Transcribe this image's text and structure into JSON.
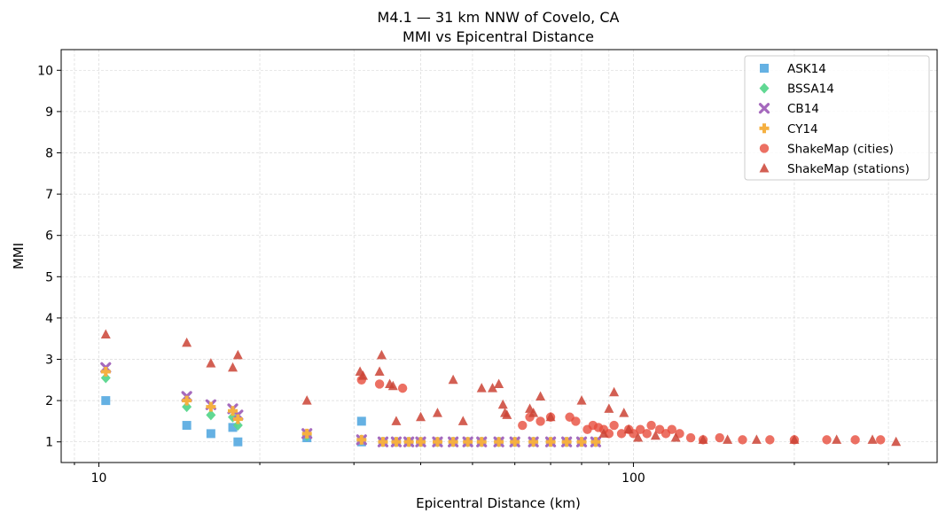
{
  "chart_data": {
    "type": "scatter",
    "title": "M4.1 — 31 km NNW of Covelo, CA",
    "subtitle": "MMI vs Epicentral Distance",
    "xlabel": "Epicentral Distance (km)",
    "ylabel": "MMI",
    "xscale": "log",
    "xlim": [
      8.5,
      370
    ],
    "ylim": [
      0.5,
      10.5
    ],
    "xticks": [
      10,
      100
    ],
    "xtick_labels": [
      "10",
      "100"
    ],
    "yticks": [
      1,
      2,
      3,
      4,
      5,
      6,
      7,
      8,
      9,
      10
    ],
    "ytick_labels": [
      "1",
      "2",
      "3",
      "4",
      "5",
      "6",
      "7",
      "8",
      "9",
      "10"
    ],
    "grid": true,
    "legend_position": "top-right",
    "series": [
      {
        "name": "ASK14",
        "marker": "square",
        "color": "#5DADE2",
        "points": [
          [
            10.3,
            2.0
          ],
          [
            14.6,
            1.4
          ],
          [
            16.2,
            1.2
          ],
          [
            17.8,
            1.35
          ],
          [
            18.2,
            1.0
          ],
          [
            24.5,
            1.1
          ],
          [
            31,
            1.5
          ],
          [
            31,
            1.0
          ],
          [
            34,
            1.0
          ],
          [
            36,
            1.0
          ],
          [
            38,
            1.0
          ],
          [
            40,
            1.0
          ],
          [
            43,
            1.0
          ],
          [
            46,
            1.0
          ],
          [
            49,
            1.0
          ],
          [
            52,
            1.0
          ],
          [
            56,
            1.0
          ],
          [
            60,
            1.0
          ],
          [
            65,
            1.0
          ],
          [
            70,
            1.0
          ],
          [
            75,
            1.0
          ],
          [
            80,
            1.0
          ],
          [
            85,
            1.0
          ]
        ]
      },
      {
        "name": "BSSA14",
        "marker": "diamond",
        "color": "#58D68D",
        "points": [
          [
            10.3,
            2.55
          ],
          [
            14.6,
            1.85
          ],
          [
            16.2,
            1.65
          ],
          [
            17.8,
            1.6
          ],
          [
            18.2,
            1.4
          ],
          [
            24.5,
            1.15
          ],
          [
            31,
            1.05
          ],
          [
            34,
            1.0
          ],
          [
            36,
            1.0
          ],
          [
            38,
            1.0
          ],
          [
            40,
            1.0
          ],
          [
            43,
            1.0
          ],
          [
            46,
            1.0
          ],
          [
            49,
            1.0
          ],
          [
            52,
            1.0
          ],
          [
            56,
            1.0
          ],
          [
            60,
            1.0
          ],
          [
            65,
            1.0
          ],
          [
            70,
            1.0
          ],
          [
            75,
            1.0
          ],
          [
            80,
            1.0
          ],
          [
            85,
            1.0
          ]
        ]
      },
      {
        "name": "CB14",
        "marker": "x",
        "color": "#A569BD",
        "points": [
          [
            10.3,
            2.8
          ],
          [
            14.6,
            2.1
          ],
          [
            16.2,
            1.9
          ],
          [
            17.8,
            1.8
          ],
          [
            18.2,
            1.65
          ],
          [
            24.5,
            1.2
          ],
          [
            31,
            1.05
          ],
          [
            34,
            1.0
          ],
          [
            36,
            1.0
          ],
          [
            38,
            1.0
          ],
          [
            40,
            1.0
          ],
          [
            43,
            1.0
          ],
          [
            46,
            1.0
          ],
          [
            49,
            1.0
          ],
          [
            52,
            1.0
          ],
          [
            56,
            1.0
          ],
          [
            60,
            1.0
          ],
          [
            65,
            1.0
          ],
          [
            70,
            1.0
          ],
          [
            75,
            1.0
          ],
          [
            80,
            1.0
          ],
          [
            85,
            1.0
          ]
        ]
      },
      {
        "name": "CY14",
        "marker": "plus",
        "color": "#F5B041",
        "points": [
          [
            10.3,
            2.7
          ],
          [
            14.6,
            2.0
          ],
          [
            16.2,
            1.85
          ],
          [
            17.8,
            1.75
          ],
          [
            18.2,
            1.55
          ],
          [
            24.5,
            1.2
          ],
          [
            31,
            1.05
          ],
          [
            34,
            1.0
          ],
          [
            36,
            1.0
          ],
          [
            38,
            1.0
          ],
          [
            40,
            1.0
          ],
          [
            43,
            1.0
          ],
          [
            46,
            1.0
          ],
          [
            49,
            1.0
          ],
          [
            52,
            1.0
          ],
          [
            56,
            1.0
          ],
          [
            60,
            1.0
          ],
          [
            65,
            1.0
          ],
          [
            70,
            1.0
          ],
          [
            75,
            1.0
          ],
          [
            80,
            1.0
          ],
          [
            85,
            1.0
          ]
        ]
      },
      {
        "name": "ShakeMap (cities)",
        "marker": "circle",
        "color": "#E74C3C",
        "points": [
          [
            31,
            2.5
          ],
          [
            33.5,
            2.4
          ],
          [
            37,
            2.3
          ],
          [
            62,
            1.4
          ],
          [
            64,
            1.6
          ],
          [
            67,
            1.5
          ],
          [
            70,
            1.6
          ],
          [
            76,
            1.6
          ],
          [
            78,
            1.5
          ],
          [
            82,
            1.3
          ],
          [
            84,
            1.4
          ],
          [
            86,
            1.35
          ],
          [
            88,
            1.3
          ],
          [
            90,
            1.2
          ],
          [
            92,
            1.4
          ],
          [
            95,
            1.2
          ],
          [
            98,
            1.3
          ],
          [
            100,
            1.2
          ],
          [
            103,
            1.3
          ],
          [
            106,
            1.2
          ],
          [
            108,
            1.4
          ],
          [
            112,
            1.3
          ],
          [
            115,
            1.2
          ],
          [
            118,
            1.3
          ],
          [
            122,
            1.2
          ],
          [
            128,
            1.1
          ],
          [
            135,
            1.05
          ],
          [
            145,
            1.1
          ],
          [
            160,
            1.05
          ],
          [
            180,
            1.05
          ],
          [
            200,
            1.05
          ],
          [
            230,
            1.05
          ],
          [
            260,
            1.05
          ],
          [
            290,
            1.05
          ]
        ]
      },
      {
        "name": "ShakeMap (stations)",
        "marker": "triangle",
        "color": "#CB4335",
        "points": [
          [
            10.3,
            3.6
          ],
          [
            14.6,
            3.4
          ],
          [
            16.2,
            2.9
          ],
          [
            17.8,
            2.8
          ],
          [
            18.2,
            3.1
          ],
          [
            24.5,
            2.0
          ],
          [
            30.8,
            2.7
          ],
          [
            31.2,
            2.6
          ],
          [
            33.5,
            2.7
          ],
          [
            33.8,
            3.1
          ],
          [
            35,
            2.4
          ],
          [
            35.5,
            2.35
          ],
          [
            36,
            1.5
          ],
          [
            40,
            1.6
          ],
          [
            43,
            1.7
          ],
          [
            46,
            2.5
          ],
          [
            48,
            1.5
          ],
          [
            52,
            2.3
          ],
          [
            54.5,
            2.3
          ],
          [
            56,
            2.4
          ],
          [
            57,
            1.9
          ],
          [
            57.5,
            1.7
          ],
          [
            58,
            1.65
          ],
          [
            64,
            1.8
          ],
          [
            65,
            1.7
          ],
          [
            67,
            2.1
          ],
          [
            70,
            1.6
          ],
          [
            80,
            2.0
          ],
          [
            88,
            1.2
          ],
          [
            90,
            1.8
          ],
          [
            92,
            2.2
          ],
          [
            96,
            1.7
          ],
          [
            98,
            1.3
          ],
          [
            102,
            1.1
          ],
          [
            110,
            1.15
          ],
          [
            120,
            1.1
          ],
          [
            135,
            1.05
          ],
          [
            150,
            1.05
          ],
          [
            170,
            1.05
          ],
          [
            200,
            1.05
          ],
          [
            240,
            1.05
          ],
          [
            280,
            1.05
          ],
          [
            310,
            1.0
          ]
        ]
      }
    ]
  }
}
